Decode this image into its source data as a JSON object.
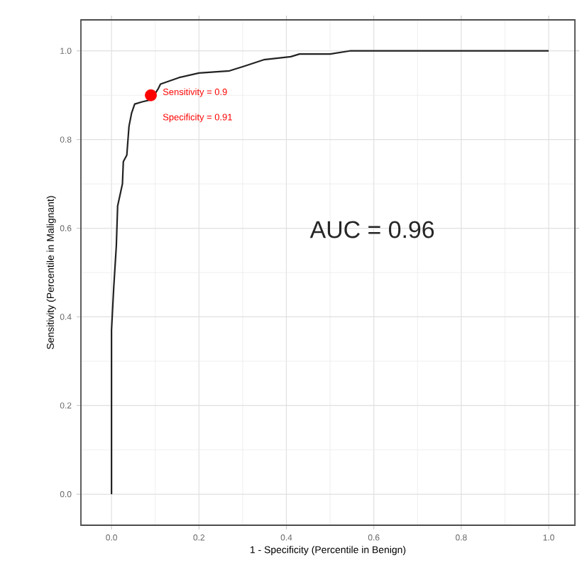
{
  "chart_data": {
    "type": "line",
    "xlabel": "1 - Specificity (Percentile in Benign)",
    "ylabel": "Sensitivity (Percentile in Malignant)",
    "xlim": [
      -0.07,
      1.06
    ],
    "ylim": [
      -0.07,
      1.07
    ],
    "xticks": [
      {
        "value": 0,
        "label": "0.0"
      },
      {
        "value": 0.2,
        "label": "0.2"
      },
      {
        "value": 0.4,
        "label": "0.4"
      },
      {
        "value": 0.6,
        "label": "0.6"
      },
      {
        "value": 0.8,
        "label": "0.8"
      },
      {
        "value": 1,
        "label": "1.0"
      }
    ],
    "yticks": [
      {
        "value": 0,
        "label": "0.0"
      },
      {
        "value": 0.2,
        "label": "0.2"
      },
      {
        "value": 0.4,
        "label": "0.4"
      },
      {
        "value": 0.6,
        "label": "0.6"
      },
      {
        "value": 0.8,
        "label": "0.8"
      },
      {
        "value": 1,
        "label": "1.0"
      }
    ],
    "grid": true,
    "line_style": "solid",
    "series": [
      {
        "color": "#222222",
        "marker": "none",
        "x": [
          0,
          0,
          0.005,
          0.011,
          0.014,
          0.025,
          0.027,
          0.035,
          0.04,
          0.046,
          0.053,
          0.07,
          0.091,
          0.107,
          0.112,
          0.155,
          0.2,
          0.27,
          0.305,
          0.348,
          0.41,
          0.43,
          0.5,
          0.545,
          1.0
        ],
        "values": [
          0,
          0.37,
          0.465,
          0.56,
          0.65,
          0.7,
          0.75,
          0.765,
          0.83,
          0.86,
          0.88,
          0.885,
          0.89,
          0.915,
          0.925,
          0.94,
          0.95,
          0.955,
          0.966,
          0.98,
          0.987,
          0.993,
          0.993,
          1.0,
          1.0
        ]
      },
      {
        "type": "scatter",
        "color": "#ff0000",
        "marker": "circle",
        "x": [
          0.09
        ],
        "values": [
          0.9
        ]
      }
    ],
    "annotations": [
      "Sensitivity = 0.9",
      "Specificity = 0.91",
      "AUC = 0.96"
    ]
  }
}
